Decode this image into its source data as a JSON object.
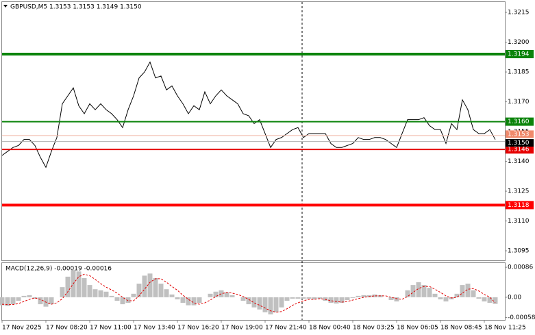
{
  "chart_data": [
    {
      "type": "line",
      "title": "GBPUSD,M5  1.3153 1.3153 1.3149 1.3150",
      "color": "#000000",
      "values": [
        1.3143,
        1.3145,
        1.3147,
        1.3148,
        1.3151,
        1.3151,
        1.3148,
        1.3142,
        1.3137,
        1.3145,
        1.3152,
        1.3169,
        1.3173,
        1.3177,
        1.3168,
        1.3164,
        1.3169,
        1.3166,
        1.3169,
        1.3166,
        1.3164,
        1.3161,
        1.3157,
        1.3166,
        1.3173,
        1.3182,
        1.3185,
        1.319,
        1.3182,
        1.3183,
        1.3176,
        1.3178,
        1.3173,
        1.3169,
        1.3164,
        1.3168,
        1.3166,
        1.3175,
        1.3169,
        1.3173,
        1.3176,
        1.3173,
        1.3171,
        1.3169,
        1.3164,
        1.3163,
        1.3159,
        1.3161,
        1.3154,
        1.3147,
        1.3151,
        1.3152,
        1.3154,
        1.3156,
        1.3157,
        1.3152,
        1.3154,
        1.3154,
        1.3154,
        1.3154,
        1.3149,
        1.3147,
        1.3147,
        1.3148,
        1.3149,
        1.3152,
        1.3151,
        1.3151,
        1.3152,
        1.3152,
        1.3151,
        1.3149,
        1.3147,
        1.3154,
        1.3161,
        1.3161,
        1.3161,
        1.3162,
        1.3158,
        1.3156,
        1.3156,
        1.3149,
        1.3159,
        1.3156,
        1.3171,
        1.3166,
        1.3156,
        1.3154,
        1.3154,
        1.3156,
        1.3151
      ],
      "ylim": [
        1.30902,
        1.32202
      ],
      "yticks": [
        1.3215,
        {
          "value": 1.32,
          "label": "1.3200"
        },
        1.3185,
        {
          "value": 1.317,
          "label": "1.3170"
        },
        1.3155,
        {
          "value": 1.314,
          "label": "1.3140"
        },
        1.3125,
        {
          "value": 1.311,
          "label": "1.3110"
        },
        1.3095
      ],
      "levels": [
        {
          "value": 1.3194,
          "color": "#0b840b",
          "thick": true
        },
        {
          "value": 1.316,
          "label": "1.3160",
          "color": "#0b840b",
          "thick": false
        },
        {
          "value": 1.3146,
          "color": "#e60000",
          "thick": false
        },
        {
          "value": 1.3118,
          "color": "#ff0000",
          "thick": true
        }
      ],
      "markers": [
        {
          "value": 1.3153,
          "color": "#f08a6c",
          "line_color": "#f0b8a8"
        },
        {
          "value": 1.315,
          "label": "1.3150",
          "color": "#000000",
          "line_color": "#b0b0b0"
        }
      ]
    },
    {
      "type": "bar",
      "title": "MACD(12,26,9) -0.00019 -0.00016",
      "color": "#c0c0c0",
      "categories": [
        "17 Nov 2025",
        null,
        null,
        null,
        null,
        null,
        null,
        null,
        "17 Nov 08:20",
        null,
        null,
        null,
        null,
        null,
        null,
        null,
        "17 Nov 11:00",
        null,
        null,
        null,
        null,
        null,
        null,
        null,
        "17 Nov 13:40",
        null,
        null,
        null,
        null,
        null,
        null,
        null,
        "17 Nov 16:20",
        null,
        null,
        null,
        null,
        null,
        null,
        null,
        "17 Nov 19:00",
        null,
        null,
        null,
        null,
        null,
        null,
        null,
        "17 Nov 21:40",
        null,
        null,
        null,
        null,
        null,
        null,
        null,
        "18 Nov 00:40",
        null,
        null,
        null,
        null,
        null,
        null,
        null,
        "18 Nov 03:25",
        null,
        null,
        null,
        null,
        null,
        null,
        null,
        "18 Nov 06:05",
        null,
        null,
        null,
        null,
        null,
        null,
        null,
        "18 Nov 08:45",
        null,
        null,
        null,
        null,
        null,
        null,
        null,
        "18 Nov 11:25",
        null,
        null
      ],
      "values": [
        -0.00023,
        -0.00025,
        -0.0002,
        -0.0001,
        4e-05,
        6e-05,
        -4e-05,
        -0.0002,
        -0.00027,
        -0.0002,
        0,
        0.00029,
        0.00059,
        0.00078,
        0.00074,
        0.00055,
        0.00035,
        0.00023,
        0.0002,
        0.00016,
        4e-05,
        -0.0001,
        -0.0002,
        -0.00016,
        0.0001,
        0.00039,
        0.00062,
        0.00068,
        0.00055,
        0.00039,
        0.00023,
        8e-05,
        -6e-05,
        -0.00016,
        -0.00023,
        -0.00023,
        -0.00016,
        0,
        0.0001,
        0.00016,
        0.0002,
        0.00014,
        6e-05,
        0,
        -0.0001,
        -0.0002,
        -0.00029,
        -0.00035,
        -0.00043,
        -0.00049,
        -0.00043,
        -0.00029,
        -0.0001,
        -4e-05,
        -4e-05,
        -4e-05,
        -4e-05,
        -6e-05,
        -4e-05,
        -0.0001,
        -0.00016,
        -0.00018,
        -0.00016,
        -8e-05,
        -2e-05,
        4e-05,
        6e-05,
        6e-05,
        8e-05,
        6e-05,
        0,
        -8e-05,
        -0.00012,
        0,
        0.0002,
        0.00035,
        0.00043,
        0.00035,
        0.00027,
        0.0001,
        -6e-05,
        -0.00012,
        -6e-05,
        0.0001,
        0.00035,
        0.00039,
        0.0002,
        -4e-05,
        -0.00012,
        -0.00016,
        -0.00019
      ],
      "signal": [
        -0.0002,
        -0.00021,
        -0.00021,
        -0.00018,
        -0.00012,
        -6e-05,
        -2e-05,
        -6e-05,
        -0.00014,
        -0.0002,
        -0.00016,
        -4e-05,
        0.00016,
        0.00039,
        0.00059,
        0.00066,
        0.00062,
        0.00051,
        0.00039,
        0.00029,
        0.00021,
        0.00012,
        0,
        -0.0001,
        -0.0001,
        4e-05,
        0.00023,
        0.00043,
        0.00053,
        0.00053,
        0.00043,
        0.00031,
        0.0002,
        6e-05,
        -6e-05,
        -0.00016,
        -0.0002,
        -0.00016,
        -8e-05,
        2e-05,
        0.0001,
        0.00014,
        0.00012,
        8e-05,
        2e-05,
        -6e-05,
        -0.00016,
        -0.00023,
        -0.00031,
        -0.00039,
        -0.00043,
        -0.00041,
        -0.00033,
        -0.00023,
        -0.00016,
        -0.0001,
        -6e-05,
        -6e-05,
        -4e-05,
        -6e-05,
        -0.0001,
        -0.00012,
        -0.00014,
        -0.00012,
        -8e-05,
        -4e-05,
        0,
        2e-05,
        4e-05,
        4e-05,
        4e-05,
        0,
        -4e-05,
        -6e-05,
        2e-05,
        0.00014,
        0.00025,
        0.00031,
        0.00031,
        0.00023,
        0.00014,
        4e-05,
        -2e-05,
        0,
        0.00012,
        0.00023,
        0.00025,
        0.00018,
        8e-05,
        0,
        -0.00016
      ],
      "signal_color": "#e00000",
      "ylim": [
        -0.00065,
        0.001
      ],
      "yticks": [
        0.00086,
        {
          "value": 0,
          "label": "0.00"
        },
        -0.00058
      ]
    }
  ]
}
